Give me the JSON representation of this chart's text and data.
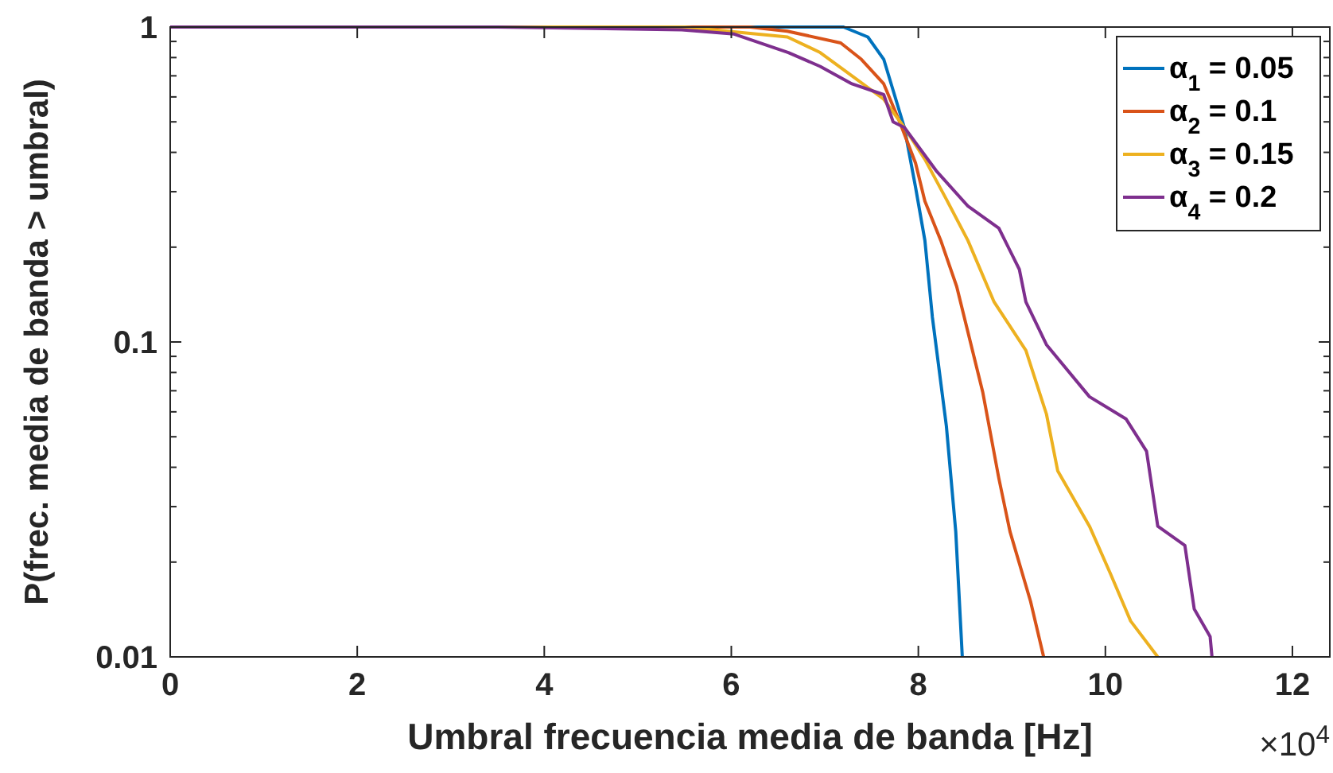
{
  "chart_data": {
    "type": "line",
    "xlabel": "Umbral frecuencia media de banda [Hz]",
    "ylabel": "P(frec. media de banda > umbral)",
    "annotations": [
      "×10$^{4}$"
    ],
    "log": "y",
    "grid": false,
    "legend": "top right",
    "line_style": "solid",
    "xlim": [
      0,
      12.4
    ],
    "xticks": [
      0,
      2,
      4,
      6,
      8,
      10,
      12
    ],
    "ylim": [
      0.01,
      1
    ],
    "yticks": [
      {
        "value": 0.01,
        "label": "0.01"
      },
      {
        "value": 0.02,
        "label": null
      },
      {
        "value": 0.03,
        "label": null
      },
      {
        "value": 0.04,
        "label": null
      },
      {
        "value": 0.05,
        "label": null
      },
      {
        "value": 0.06,
        "label": null
      },
      {
        "value": 0.07,
        "label": null
      },
      {
        "value": 0.08,
        "label": null
      },
      {
        "value": 0.09,
        "label": null
      },
      {
        "value": 0.1,
        "label": "0.1"
      },
      {
        "value": 0.2,
        "label": null
      },
      {
        "value": 0.3,
        "label": null
      },
      {
        "value": 0.4,
        "label": null
      },
      {
        "value": 0.5,
        "label": null
      },
      {
        "value": 0.6,
        "label": null
      },
      {
        "value": 0.7,
        "label": null
      },
      {
        "value": 0.8,
        "label": null
      },
      {
        "value": 0.9,
        "label": null
      },
      {
        "value": 1,
        "label": "1"
      }
    ],
    "series": [
      {
        "name": "α$_{1}$ = 0.05",
        "color": "#0072bd",
        "x": [
          0,
          7.2,
          7.46,
          7.63,
          7.73,
          7.85,
          7.97,
          8.07,
          8.15,
          8.3,
          8.4,
          8.47
        ],
        "values": [
          1,
          1,
          0.93,
          0.79,
          0.63,
          0.48,
          0.31,
          0.21,
          0.12,
          0.054,
          0.025,
          0.01
        ]
      },
      {
        "name": "α$_{2}$ = 0.1",
        "color": "#d95319",
        "x": [
          0,
          6.2,
          6.6,
          7.17,
          7.39,
          7.63,
          7.8,
          7.97,
          8.07,
          8.24,
          8.41,
          8.69,
          8.86,
          8.98,
          9.2,
          9.34
        ],
        "values": [
          1,
          1,
          0.97,
          0.89,
          0.79,
          0.66,
          0.5,
          0.37,
          0.28,
          0.21,
          0.15,
          0.069,
          0.037,
          0.025,
          0.015,
          0.01
        ]
      },
      {
        "name": "α$_{3}$ = 0.15",
        "color": "#edb120",
        "x": [
          0,
          5.5,
          6.6,
          6.95,
          7.29,
          7.63,
          7.85,
          8.07,
          8.31,
          8.53,
          8.81,
          9.15,
          9.37,
          9.49,
          9.83,
          10.05,
          10.27,
          10.56
        ],
        "values": [
          1,
          1,
          0.93,
          0.83,
          0.7,
          0.59,
          0.48,
          0.38,
          0.28,
          0.21,
          0.134,
          0.094,
          0.059,
          0.039,
          0.026,
          0.0185,
          0.013,
          0.01
        ]
      },
      {
        "name": "α$_{4}$ = 0.2",
        "color": "#7e2f8e",
        "x": [
          0,
          3.5,
          5.47,
          6.03,
          6.61,
          6.95,
          7.29,
          7.63,
          7.73,
          7.85,
          8.19,
          8.53,
          8.86,
          9.08,
          9.15,
          9.37,
          9.83,
          10.22,
          10.44,
          10.56,
          10.85,
          10.95,
          11.12,
          11.14
        ],
        "values": [
          1,
          1,
          0.98,
          0.95,
          0.83,
          0.75,
          0.66,
          0.61,
          0.5,
          0.48,
          0.35,
          0.27,
          0.23,
          0.17,
          0.134,
          0.098,
          0.067,
          0.057,
          0.045,
          0.026,
          0.0226,
          0.0142,
          0.0116,
          0.01
        ]
      }
    ]
  }
}
